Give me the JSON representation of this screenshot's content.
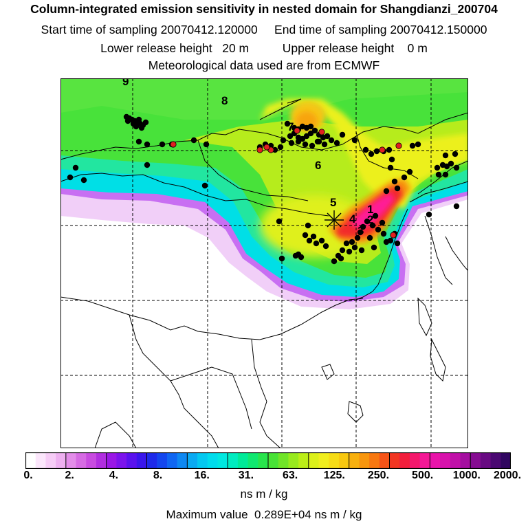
{
  "header": {
    "title": "Column-integrated emission sensitivity in nested domain for Shangdianzi_200704",
    "sampling_line": "Start time of sampling 20070412.120000     End time of sampling 20070412.150000",
    "release_line": "Lower release height   20 m          Upper release height    0 m",
    "met_line": "Meteorological data used are from ECMWF"
  },
  "map": {
    "day_labels": [
      "1",
      "2",
      "3",
      "4",
      "5",
      "6",
      "7",
      "8",
      "9"
    ],
    "receptor_marker": "asterisk-icon",
    "colors": {
      "low_purple": "#a020f0",
      "cyan": "#00e0e8",
      "green": "#40e050",
      "yellow": "#e8f020",
      "orange": "#f8a020",
      "red": "#f02030",
      "magenta": "#ff20a0",
      "dot_black": "#000000",
      "dot_red": "#e02020"
    }
  },
  "colorbar": {
    "tick_labels": [
      "0.",
      "2.",
      "4.",
      "8.",
      "16.",
      "31.",
      "63.",
      "125.",
      "250.",
      "500.",
      "1000.",
      "2000."
    ],
    "colors": [
      "#ffffff",
      "#fbe6fb",
      "#f6ccf6",
      "#eeb0f0",
      "#e38de9",
      "#d66be3",
      "#c84be0",
      "#b12ee0",
      "#9a18e6",
      "#7c14ec",
      "#5a12ee",
      "#3a16ec",
      "#1e2aea",
      "#1446ee",
      "#1066f2",
      "#0e88f2",
      "#0aaaf2",
      "#04c8f0",
      "#00dcec",
      "#00e8e0",
      "#00ecc0",
      "#00ea98",
      "#10e870",
      "#28e44c",
      "#48e236",
      "#70e428",
      "#98ea1e",
      "#bcee18",
      "#dcf01a",
      "#f0ee1e",
      "#f6dc16",
      "#f8c810",
      "#f8b00e",
      "#f8960e",
      "#f87810",
      "#f65418",
      "#f23622",
      "#f21e3c",
      "#f4186c",
      "#f41896",
      "#ea14aa",
      "#d812ac",
      "#c010a8",
      "#a40ea0",
      "#860c92",
      "#680a82",
      "#4a0872",
      "#300660"
    ],
    "units": "ns m / kg",
    "max_value": "Maximum value  0.289E+04 ns m / kg"
  }
}
